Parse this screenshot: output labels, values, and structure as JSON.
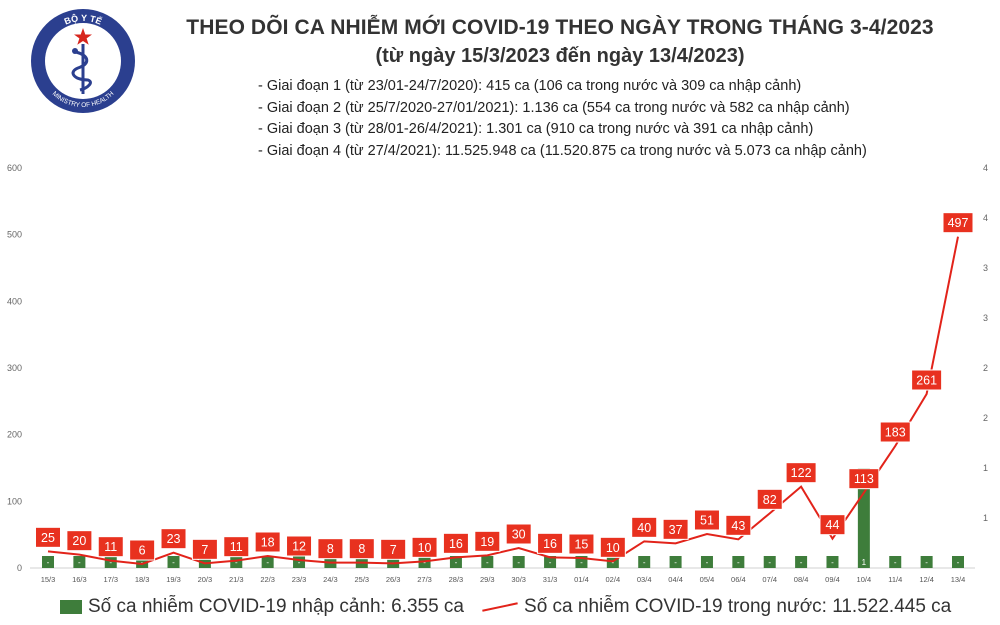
{
  "header": {
    "logo_text_top": "BỘ Y TẾ",
    "logo_text_bottom": "MINISTRY OF HEALTH",
    "title": "THEO DÕI CA NHIỄM MỚI COVID-19 THEO NGÀY TRONG THÁNG 3-4/2023",
    "subtitle": "(từ ngày 15/3/2023 đến ngày 13/4/2023)"
  },
  "periods": [
    "Giai đoạn 1 (từ 23/01-24/7/2020): 415 ca (106 ca trong nước và 309 ca nhập cảnh)",
    "Giai đoạn 2 (từ 25/7/2020-27/01/2021): 1.136 ca (554 ca trong nước và 582 ca nhập cảnh)",
    "Giai đoạn 3 (từ 28/01-26/4/2021): 1.301 ca (910 ca trong nước và 391 ca nhập cảnh)",
    "Giai đoạn 4 (từ 27/4/2021): 11.525.948 ca (11.520.875 ca trong nước và 5.073 ca nhập cảnh)"
  ],
  "legend": {
    "imported": "Số ca nhiễm COVID-19 nhập cảnh: 6.355 ca",
    "domestic": "Số ca nhiễm COVID-19 trong nước: 11.522.445 ca"
  },
  "colors": {
    "bar": "#3e7d3b",
    "line": "#e2231a",
    "label_box": "#e8311f",
    "logo_blue": "#2b3f8f",
    "logo_red": "#d7261e"
  },
  "chart_data": {
    "type": "bar+line",
    "categories": [
      "15/3",
      "16/3",
      "17/3",
      "18/3",
      "19/3",
      "20/3",
      "21/3",
      "22/3",
      "23/3",
      "24/3",
      "25/3",
      "26/3",
      "27/3",
      "28/3",
      "29/3",
      "30/3",
      "31/3",
      "01/4",
      "02/4",
      "03/4",
      "04/4",
      "05/4",
      "06/4",
      "07/4",
      "08/4",
      "09/4",
      "10/4",
      "11/4",
      "12/4",
      "13/4"
    ],
    "series": [
      {
        "name": "Số ca nhiễm COVID-19 nhập cảnh",
        "type": "bar",
        "axis": "right",
        "values": [
          0,
          0,
          0,
          0,
          0,
          0,
          0,
          0,
          0,
          0,
          0,
          0,
          0,
          0,
          0,
          0,
          0,
          0,
          0,
          0,
          0,
          0,
          0,
          0,
          0,
          0,
          1,
          0,
          0,
          0
        ],
        "labels": [
          "-",
          "-",
          "-",
          "-",
          "-",
          "-",
          "-",
          "-",
          "-",
          "-",
          "-",
          "-",
          "-",
          "-",
          "-",
          "-",
          "-",
          "-",
          "-",
          "-",
          "-",
          "-",
          "-",
          "-",
          "-",
          "-",
          "1",
          "-",
          "-",
          "-"
        ]
      },
      {
        "name": "Số ca nhiễm COVID-19 trong nước",
        "type": "line",
        "axis": "left",
        "values": [
          25,
          20,
          11,
          6,
          23,
          7,
          11,
          18,
          12,
          8,
          8,
          7,
          10,
          16,
          19,
          30,
          16,
          15,
          10,
          40,
          37,
          51,
          43,
          82,
          122,
          44,
          113,
          183,
          261,
          497
        ]
      }
    ],
    "left_axis": {
      "ylim": [
        0,
        600
      ],
      "ticks": [
        "0",
        "100",
        "200",
        "300",
        "400",
        "500",
        "600"
      ]
    },
    "right_axis": {
      "ylim": [
        0,
        4
      ],
      "ticks": [
        "",
        "1",
        "1",
        "2",
        "2",
        "3",
        "3",
        "4",
        "4"
      ]
    },
    "grid": false
  }
}
